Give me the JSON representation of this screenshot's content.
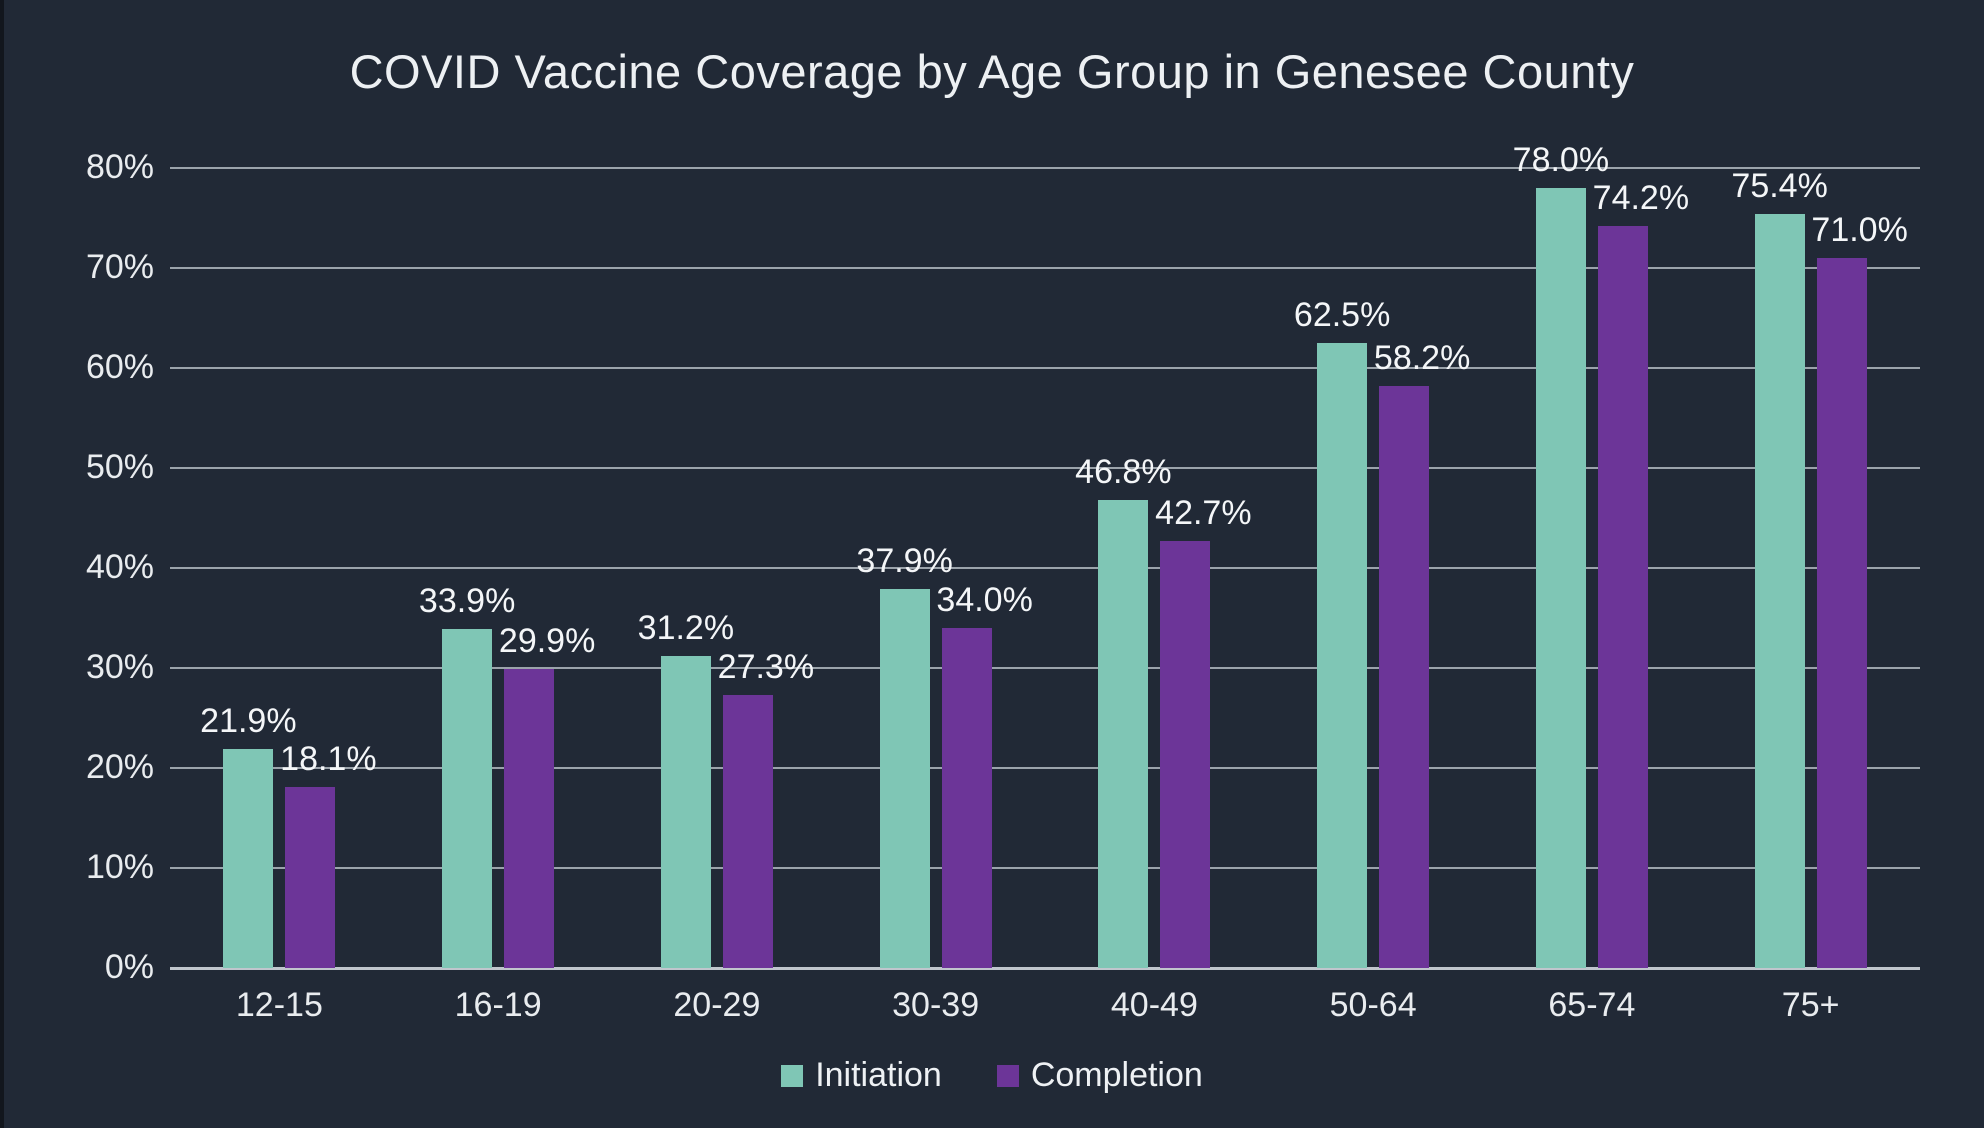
{
  "page": {
    "background": "#212936"
  },
  "chart_data": {
    "type": "bar",
    "title": "COVID Vaccine Coverage by Age Group in Genesee County",
    "categories": [
      "12-15",
      "16-19",
      "20-29",
      "30-39",
      "40-49",
      "50-64",
      "65-74",
      "75+"
    ],
    "series": [
      {
        "name": "Initiation",
        "color": "#7fc6b5",
        "values": [
          21.9,
          33.9,
          31.2,
          37.9,
          46.8,
          62.5,
          78.0,
          75.4
        ],
        "labels": [
          "21.9%",
          "33.9%",
          "31.2%",
          "37.9%",
          "46.8%",
          "62.5%",
          "78.0%",
          "75.4%"
        ]
      },
      {
        "name": "Completion",
        "color": "#6c3598",
        "values": [
          18.1,
          29.9,
          27.3,
          34.0,
          42.7,
          58.2,
          74.2,
          71.0
        ],
        "labels": [
          "18.1%",
          "29.9%",
          "27.3%",
          "34.0%",
          "42.7%",
          "58.2%",
          "74.2%",
          "71.0%"
        ]
      }
    ],
    "xlabel": "",
    "ylabel": "",
    "y_ticks": [
      "0%",
      "10%",
      "20%",
      "30%",
      "40%",
      "50%",
      "60%",
      "70%",
      "80%"
    ],
    "ylim": [
      0,
      80
    ],
    "grid": true,
    "legend_position": "bottom",
    "colors": {
      "background": "#212936",
      "gridline": "#9ba3ab",
      "axis_text": "#e9ecef",
      "value_label_text": "#f4f6f8",
      "title_text": "#edf0f3"
    }
  }
}
